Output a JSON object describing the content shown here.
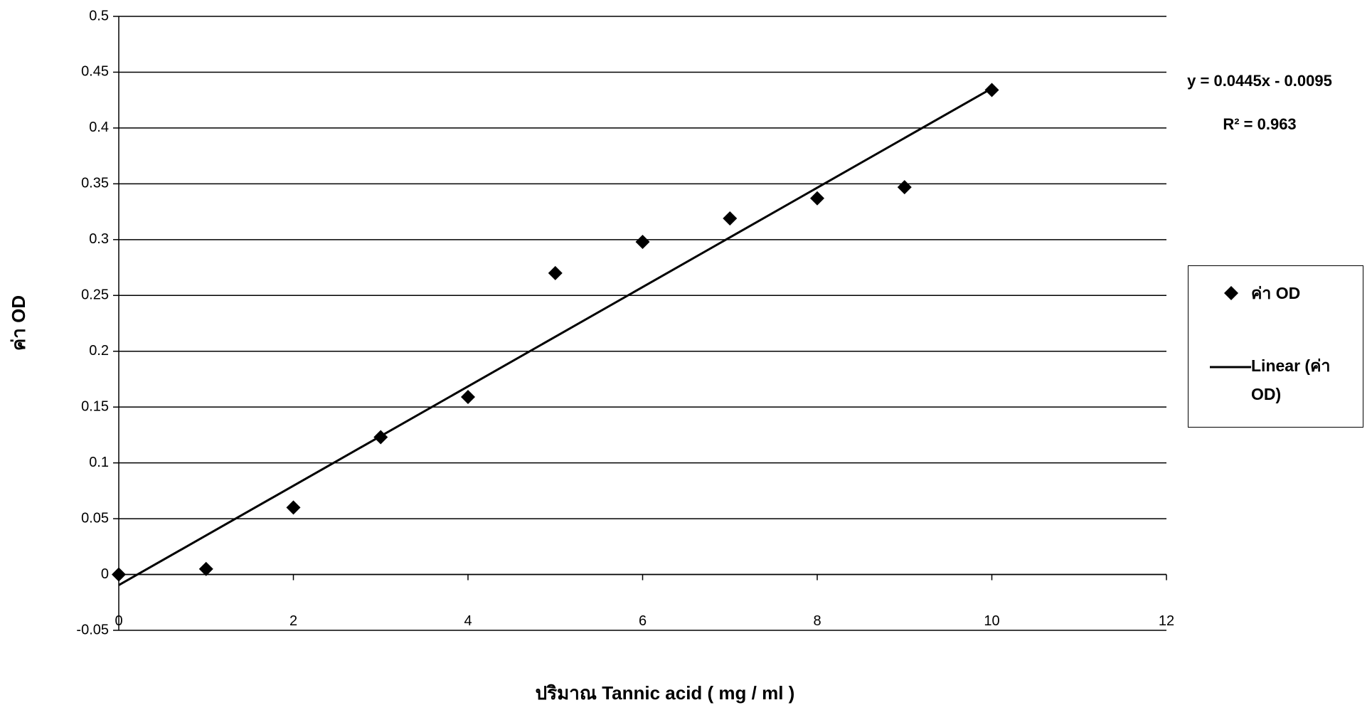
{
  "chart_data": {
    "type": "scatter",
    "x_label": "ปริมาณ Tannic acid ( mg / ml )",
    "y_label": "ค่า OD",
    "annotations": [
      "y = 0.0445x - 0.0095",
      "R² = 0.963"
    ],
    "series": [
      {
        "name": "ค่า OD",
        "color": "#000000",
        "x": [
          0,
          1,
          2,
          3,
          4,
          5,
          6,
          7,
          8,
          9,
          10
        ],
        "values": [
          0,
          0.005,
          0.06,
          0.123,
          0.159,
          0.27,
          0.298,
          0.319,
          0.337,
          0.347,
          0.434
        ]
      },
      {
        "name": "Linear (ค่า OD)",
        "color": "#000000",
        "x": [
          0,
          10
        ],
        "values": [
          -0.0095,
          0.4355
        ]
      }
    ],
    "xlim": [
      0,
      12
    ],
    "xticks": [
      0,
      2,
      4,
      6,
      8,
      10,
      12
    ],
    "ylim": [
      -0.05,
      0.5
    ],
    "yticks": [
      -0.05,
      0,
      0.05,
      0.1,
      0.15,
      0.2,
      0.25,
      0.3,
      0.35,
      0.4,
      0.45,
      0.5
    ],
    "grid": true
  }
}
